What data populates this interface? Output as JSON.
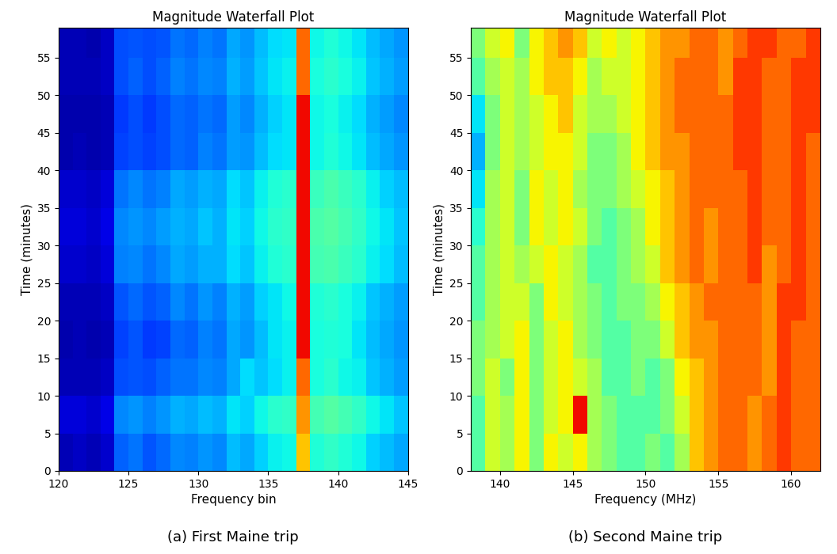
{
  "chart_data": [
    {
      "type": "heatmap",
      "title": "Magnitude Waterfall Plot",
      "x_label": "Frequency bin",
      "y_label": "Time (minutes)",
      "caption": "(a) First Maine trip",
      "xlim": [
        120,
        145
      ],
      "ylim": [
        0,
        59
      ],
      "xticks": [
        120,
        125,
        130,
        135,
        140,
        145
      ],
      "yticks": [
        0,
        5,
        10,
        15,
        20,
        25,
        30,
        35,
        40,
        45,
        50,
        55
      ],
      "x_edges": [
        120,
        121,
        122,
        123,
        124,
        125,
        126,
        127,
        128,
        129,
        130,
        131,
        132,
        133,
        134,
        135,
        136,
        137,
        138,
        139,
        140,
        141,
        142,
        143,
        144,
        145
      ],
      "y_edges": [
        0,
        5,
        10,
        15,
        20,
        25,
        30,
        35,
        40,
        45,
        50,
        55,
        60
      ],
      "zlim": [
        0,
        10
      ],
      "cells": [
        [
          0.5,
          0.6,
          0.5,
          0.7,
          2.2,
          2.4,
          2.1,
          2.3,
          2.6,
          2.5,
          2.7,
          2.6,
          3.1,
          2.9,
          3.3,
          3.6,
          3.7,
          7.0,
          3.9,
          4.1,
          3.9,
          3.7,
          3.3,
          3.1,
          2.9
        ],
        [
          0.8,
          0.8,
          0.7,
          0.9,
          2.6,
          2.7,
          2.5,
          2.7,
          3.0,
          2.9,
          3.1,
          3.0,
          3.5,
          3.3,
          3.7,
          4.0,
          4.1,
          7.5,
          4.3,
          4.5,
          4.3,
          4.1,
          3.7,
          3.5,
          3.2
        ],
        [
          0.5,
          0.5,
          0.5,
          0.6,
          2.0,
          2.1,
          2.0,
          2.2,
          2.4,
          2.4,
          2.6,
          2.5,
          2.9,
          3.4,
          3.2,
          3.4,
          3.6,
          8.0,
          3.8,
          4.0,
          3.7,
          3.6,
          3.2,
          3.0,
          2.8
        ],
        [
          0.4,
          0.5,
          0.4,
          0.5,
          1.9,
          2.1,
          1.8,
          1.9,
          2.3,
          2.2,
          2.5,
          2.4,
          2.9,
          2.7,
          3.1,
          3.5,
          3.6,
          9.0,
          3.8,
          3.9,
          3.8,
          3.5,
          3.1,
          2.9,
          2.7
        ],
        [
          0.5,
          0.5,
          0.5,
          0.6,
          2.1,
          2.3,
          2.1,
          2.2,
          2.6,
          2.4,
          2.7,
          2.5,
          3.0,
          2.8,
          3.3,
          3.5,
          3.7,
          9.0,
          3.9,
          4.0,
          3.8,
          3.6,
          3.2,
          3.0,
          2.8
        ],
        [
          0.7,
          0.7,
          0.6,
          0.8,
          2.5,
          2.6,
          2.4,
          2.6,
          2.9,
          2.8,
          3.0,
          3.0,
          3.4,
          3.2,
          3.6,
          3.9,
          4.0,
          9.0,
          4.3,
          4.4,
          4.2,
          4.0,
          3.6,
          3.4,
          3.1
        ],
        [
          0.8,
          0.8,
          0.7,
          0.9,
          2.6,
          2.7,
          2.6,
          2.8,
          3.0,
          2.9,
          3.2,
          3.0,
          3.5,
          3.3,
          3.7,
          4.0,
          4.1,
          9.0,
          4.4,
          4.5,
          4.3,
          4.1,
          3.7,
          3.5,
          3.2
        ],
        [
          0.7,
          0.7,
          0.6,
          0.8,
          2.4,
          2.6,
          2.4,
          2.5,
          2.9,
          2.8,
          3.0,
          2.9,
          3.4,
          3.2,
          3.6,
          3.9,
          4.0,
          9.0,
          4.2,
          4.4,
          4.2,
          4.0,
          3.6,
          3.3,
          3.1
        ],
        [
          0.4,
          0.5,
          0.4,
          0.5,
          1.9,
          2.0,
          1.9,
          2.0,
          2.3,
          2.2,
          2.5,
          2.4,
          2.8,
          2.7,
          3.1,
          3.4,
          3.5,
          9.0,
          3.7,
          3.9,
          3.7,
          3.5,
          3.1,
          2.9,
          2.7
        ],
        [
          0.4,
          0.4,
          0.4,
          0.5,
          1.8,
          2.0,
          1.8,
          2.0,
          2.3,
          2.2,
          2.4,
          2.3,
          2.8,
          2.6,
          3.0,
          3.3,
          3.5,
          9.0,
          3.7,
          3.8,
          3.6,
          3.4,
          3.0,
          2.8,
          2.6
        ],
        [
          0.5,
          0.5,
          0.5,
          0.6,
          2.0,
          2.2,
          2.0,
          2.2,
          2.5,
          2.4,
          2.6,
          2.5,
          3.0,
          2.8,
          3.2,
          3.5,
          3.6,
          8.0,
          3.8,
          4.0,
          3.8,
          3.6,
          3.2,
          3.0,
          2.8
        ],
        [
          0.5,
          0.5,
          0.4,
          0.6,
          2.0,
          2.1,
          2.0,
          2.1,
          2.4,
          2.3,
          2.5,
          2.4,
          2.9,
          2.7,
          3.1,
          3.4,
          3.5,
          8.0,
          3.7,
          3.9,
          3.7,
          3.5,
          3.1,
          2.9,
          2.7
        ]
      ]
    },
    {
      "type": "heatmap",
      "title": "Magnitude Waterfall Plot",
      "x_label": "Frequency (MHz)",
      "y_label": "Time (minutes)",
      "caption": "(b) Second Maine trip",
      "xlim": [
        138,
        162
      ],
      "ylim": [
        0,
        59
      ],
      "xticks": [
        140,
        145,
        150,
        155,
        160
      ],
      "yticks": [
        0,
        5,
        10,
        15,
        20,
        25,
        30,
        35,
        40,
        45,
        50,
        55
      ],
      "x_edges": [
        138,
        139,
        140,
        141,
        142,
        143,
        144,
        145,
        146,
        147,
        148,
        149,
        150,
        151,
        152,
        153,
        154,
        155,
        156,
        157,
        158,
        159,
        160,
        161,
        162
      ],
      "y_edges": [
        0,
        5,
        10,
        15,
        20,
        25,
        30,
        35,
        40,
        45,
        50,
        55,
        60
      ],
      "zlim": [
        0,
        10
      ],
      "cells": [
        [
          4.5,
          6,
          5.5,
          6.5,
          5,
          6.5,
          6,
          6.5,
          5.5,
          5,
          4.5,
          4.5,
          5,
          4.5,
          5.5,
          7,
          7.5,
          8,
          8,
          7.5,
          8,
          8.5,
          8,
          8
        ],
        [
          4.5,
          6,
          5.5,
          6.5,
          5,
          6,
          6.5,
          9,
          5.5,
          5,
          4.5,
          4.5,
          4.5,
          5,
          6,
          7,
          7.5,
          8,
          8,
          7.5,
          8,
          8.5,
          8,
          8
        ],
        [
          5,
          6,
          5,
          6.5,
          5,
          6,
          6.5,
          6,
          5.5,
          4.5,
          4.5,
          5,
          4.5,
          5,
          6.5,
          7,
          7.5,
          8,
          8,
          8,
          7.5,
          8.5,
          8,
          8
        ],
        [
          5,
          5.5,
          6,
          6.5,
          5,
          6,
          6.5,
          5.5,
          5,
          4.5,
          4.5,
          5,
          5,
          6,
          7,
          7.5,
          7.5,
          8,
          8,
          8,
          7.5,
          8.5,
          8,
          8
        ],
        [
          4.5,
          5.5,
          6,
          6,
          5,
          6.5,
          6,
          5.5,
          5,
          4.5,
          5,
          5,
          5.5,
          6.5,
          7,
          7.5,
          8,
          8,
          8,
          8,
          7.5,
          8.5,
          8.5,
          8
        ],
        [
          4.5,
          5.5,
          6,
          5.5,
          6,
          6.5,
          6,
          5.5,
          4.5,
          4.5,
          5,
          5.5,
          6,
          7,
          7.5,
          8,
          7.5,
          8,
          8,
          8.5,
          7.5,
          8,
          8.5,
          8
        ],
        [
          4,
          5.5,
          6,
          5,
          6.5,
          6,
          6.5,
          6,
          5,
          4.5,
          5,
          5.5,
          6.5,
          7,
          7.5,
          8,
          7.5,
          8,
          8,
          8.5,
          8,
          8,
          8.5,
          8
        ],
        [
          3.5,
          5.5,
          6,
          5,
          6.5,
          6,
          6.5,
          5.5,
          5,
          5,
          5.5,
          6,
          6.5,
          7,
          7.5,
          8,
          8,
          8,
          8,
          8.5,
          8,
          8,
          8.5,
          8
        ],
        [
          3,
          5,
          6,
          5.5,
          6,
          6.5,
          6.5,
          6,
          5,
          5,
          5.5,
          6.5,
          7,
          7.5,
          7.5,
          8,
          8,
          8,
          8.5,
          8.5,
          8,
          8,
          8.5,
          8
        ],
        [
          3.5,
          5,
          6,
          5.5,
          6,
          6.5,
          7,
          6,
          5.5,
          5.5,
          6,
          6.5,
          7,
          7.5,
          8,
          8,
          8,
          8,
          8.5,
          8.5,
          8,
          8,
          8.5,
          8.5
        ],
        [
          4.5,
          5.5,
          6,
          5.5,
          6.5,
          7,
          7,
          6.5,
          5.5,
          6,
          6,
          6.5,
          7,
          7.5,
          8,
          8,
          8,
          7.5,
          8.5,
          8.5,
          8,
          8,
          8.5,
          8.5
        ],
        [
          5,
          6,
          6.5,
          5,
          6.5,
          7,
          7.5,
          7,
          6,
          6.5,
          6,
          6.5,
          7,
          7.5,
          7.5,
          8,
          8,
          7.5,
          8,
          8.5,
          8.5,
          8,
          8,
          8.5
        ]
      ]
    }
  ]
}
